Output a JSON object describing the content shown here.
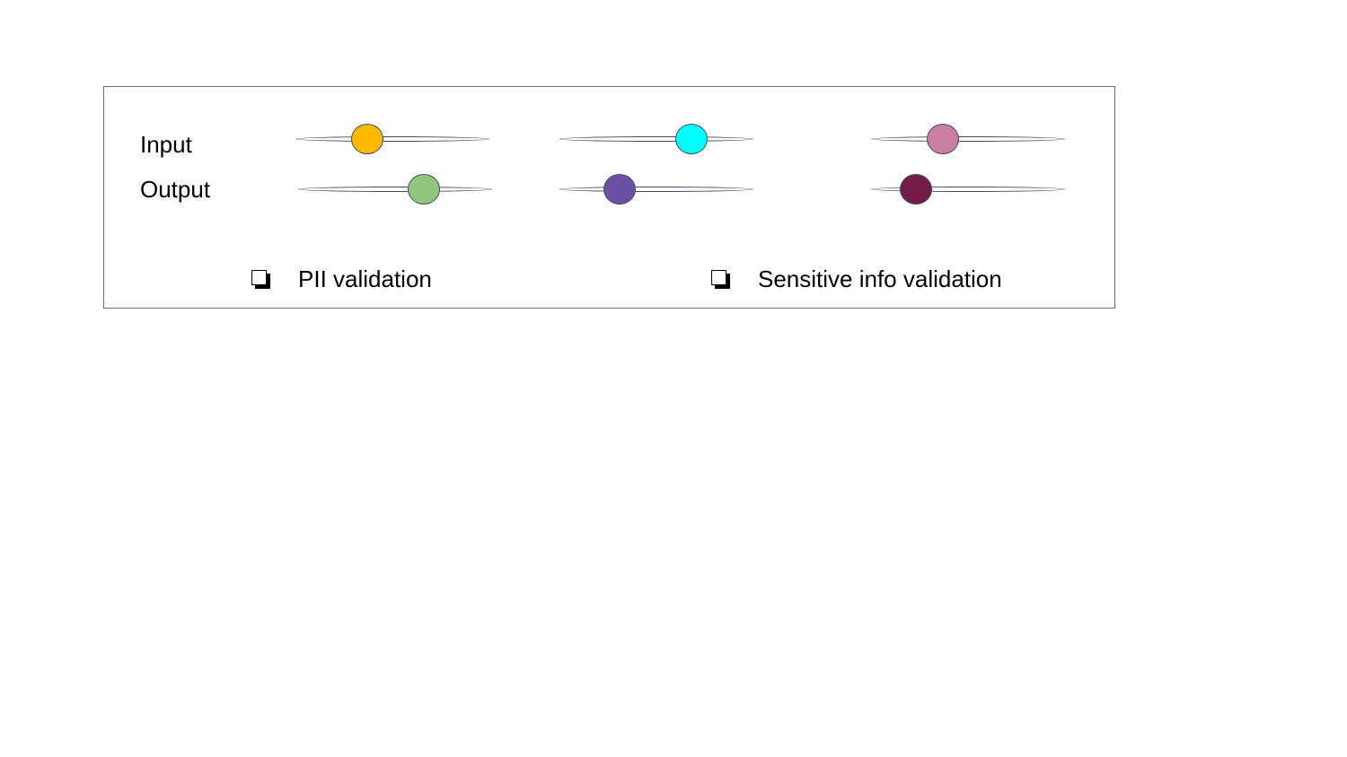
{
  "rows": [
    {
      "label": "Input",
      "sliders": [
        {
          "value": 0.37,
          "color": "#FFBA00"
        },
        {
          "value": 0.68,
          "color": "#00FFFF"
        },
        {
          "value": 0.37,
          "color": "#C97FA3"
        }
      ]
    },
    {
      "label": "Output",
      "sliders": [
        {
          "value": 0.65,
          "color": "#93C47D"
        },
        {
          "value": 0.31,
          "color": "#6A51A6"
        },
        {
          "value": 0.23,
          "color": "#741B47"
        }
      ]
    }
  ],
  "checkboxes": [
    {
      "label": "PII validation",
      "checked": false
    },
    {
      "label": "Sensitive info validation",
      "checked": false
    }
  ]
}
